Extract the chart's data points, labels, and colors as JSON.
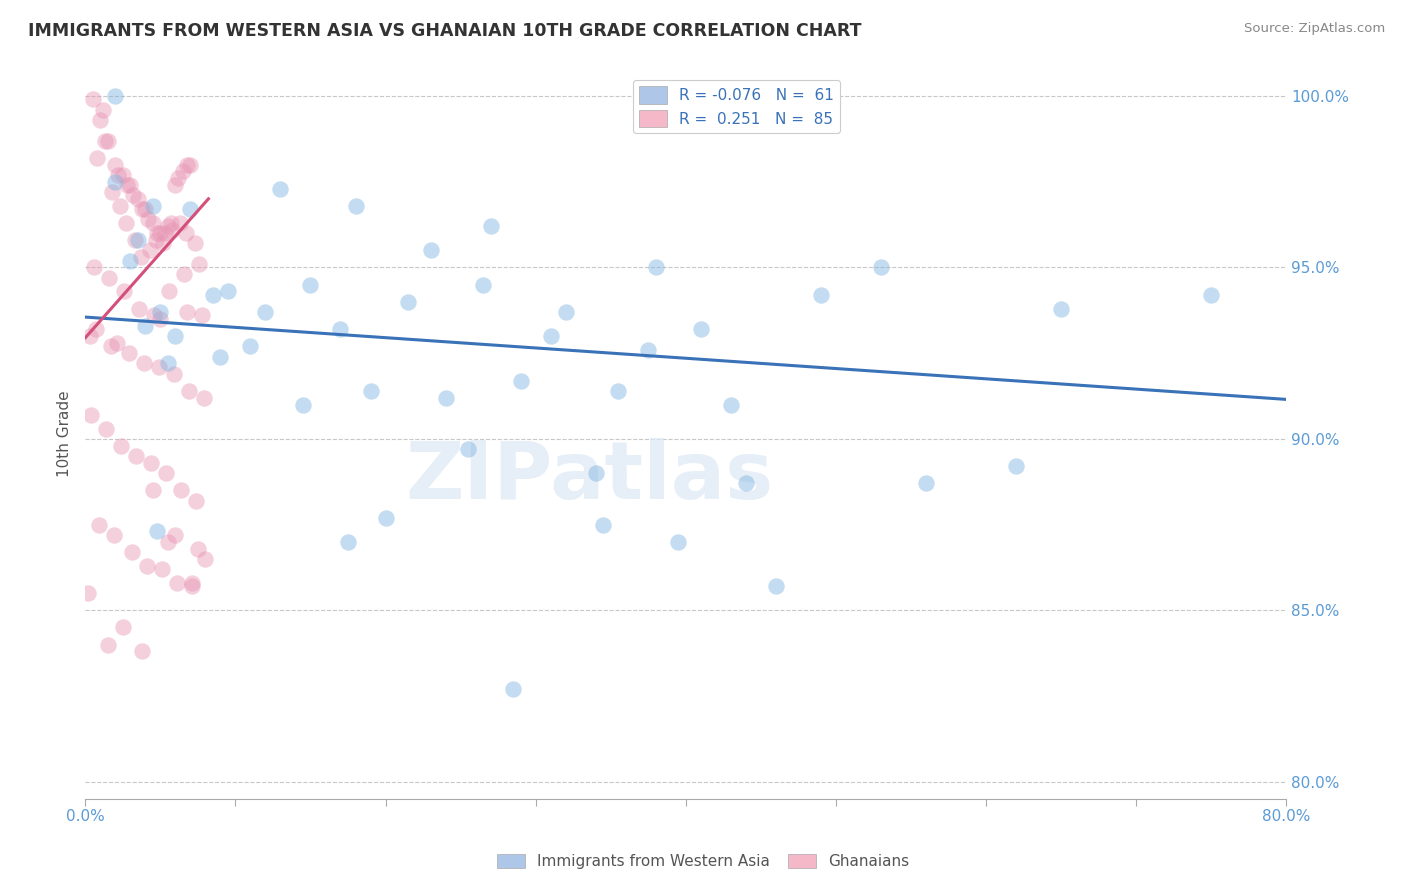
{
  "title": "IMMIGRANTS FROM WESTERN ASIA VS GHANAIAN 10TH GRADE CORRELATION CHART",
  "source": "Source: ZipAtlas.com",
  "ylabel": "10th Grade",
  "watermark": "ZIPatlas",
  "blue_color": "#7eb3e0",
  "pink_color": "#e895b3",
  "axis_label_color": "#5b9bd5",
  "title_color": "#333333",
  "xmin": 0.0,
  "xmax": 0.8,
  "ymin": 0.795,
  "ymax": 1.008,
  "yticks": [
    0.8,
    0.85,
    0.9,
    0.95,
    1.0
  ],
  "ytick_labels": [
    "80.0%",
    "85.0%",
    "90.0%",
    "95.0%",
    "100.0%"
  ],
  "xticks": [
    0.0,
    0.1,
    0.2,
    0.3,
    0.4,
    0.5,
    0.6,
    0.7,
    0.8
  ],
  "blue_trend_x": [
    0.0,
    0.8
  ],
  "blue_trend_y": [
    0.9355,
    0.9115
  ],
  "pink_trend_x": [
    0.0,
    0.082
  ],
  "pink_trend_y": [
    0.9295,
    0.97
  ],
  "blue_scatter_x": [
    0.02,
    0.18,
    0.27,
    0.42,
    0.02,
    0.13,
    0.23,
    0.38,
    0.53,
    0.07,
    0.15,
    0.095,
    0.04,
    0.06,
    0.05,
    0.03,
    0.035,
    0.045,
    0.085,
    0.12,
    0.17,
    0.215,
    0.265,
    0.32,
    0.41,
    0.49,
    0.65,
    0.75,
    0.055,
    0.09,
    0.11,
    0.145,
    0.19,
    0.24,
    0.29,
    0.355,
    0.43,
    0.31,
    0.375,
    0.255,
    0.34,
    0.44,
    0.56,
    0.62,
    0.048,
    0.175,
    0.2,
    0.345,
    0.46,
    0.395,
    0.285
  ],
  "blue_scatter_y": [
    1.0,
    0.968,
    0.962,
    1.001,
    0.975,
    0.973,
    0.955,
    0.95,
    0.95,
    0.967,
    0.945,
    0.943,
    0.933,
    0.93,
    0.937,
    0.952,
    0.958,
    0.968,
    0.942,
    0.937,
    0.932,
    0.94,
    0.945,
    0.937,
    0.932,
    0.942,
    0.938,
    0.942,
    0.922,
    0.924,
    0.927,
    0.91,
    0.914,
    0.912,
    0.917,
    0.914,
    0.91,
    0.93,
    0.926,
    0.897,
    0.89,
    0.887,
    0.887,
    0.892,
    0.873,
    0.87,
    0.877,
    0.875,
    0.857,
    0.87,
    0.827
  ],
  "pink_scatter_x": [
    0.005,
    0.01,
    0.012,
    0.015,
    0.02,
    0.022,
    0.025,
    0.028,
    0.03,
    0.032,
    0.035,
    0.038,
    0.04,
    0.042,
    0.045,
    0.048,
    0.05,
    0.052,
    0.055,
    0.058,
    0.06,
    0.062,
    0.065,
    0.068,
    0.07,
    0.008,
    0.013,
    0.018,
    0.023,
    0.027,
    0.033,
    0.037,
    0.043,
    0.047,
    0.053,
    0.057,
    0.063,
    0.067,
    0.073,
    0.006,
    0.016,
    0.026,
    0.036,
    0.046,
    0.056,
    0.066,
    0.076,
    0.003,
    0.017,
    0.029,
    0.039,
    0.049,
    0.059,
    0.069,
    0.079,
    0.004,
    0.014,
    0.024,
    0.034,
    0.044,
    0.054,
    0.064,
    0.074,
    0.009,
    0.019,
    0.031,
    0.041,
    0.051,
    0.061,
    0.071,
    0.007,
    0.021,
    0.071,
    0.05,
    0.068,
    0.078,
    0.002,
    0.06,
    0.055,
    0.045,
    0.075,
    0.08,
    0.038,
    0.025,
    0.015
  ],
  "pink_scatter_y": [
    0.999,
    0.993,
    0.996,
    0.987,
    0.98,
    0.977,
    0.977,
    0.974,
    0.974,
    0.971,
    0.97,
    0.967,
    0.967,
    0.964,
    0.963,
    0.96,
    0.96,
    0.957,
    0.962,
    0.961,
    0.974,
    0.976,
    0.978,
    0.98,
    0.98,
    0.982,
    0.987,
    0.972,
    0.968,
    0.963,
    0.958,
    0.953,
    0.955,
    0.958,
    0.96,
    0.963,
    0.963,
    0.96,
    0.957,
    0.95,
    0.947,
    0.943,
    0.938,
    0.936,
    0.943,
    0.948,
    0.951,
    0.93,
    0.927,
    0.925,
    0.922,
    0.921,
    0.919,
    0.914,
    0.912,
    0.907,
    0.903,
    0.898,
    0.895,
    0.893,
    0.89,
    0.885,
    0.882,
    0.875,
    0.872,
    0.867,
    0.863,
    0.862,
    0.858,
    0.857,
    0.932,
    0.928,
    0.858,
    0.935,
    0.937,
    0.936,
    0.855,
    0.872,
    0.87,
    0.885,
    0.868,
    0.865,
    0.838,
    0.845,
    0.84
  ]
}
